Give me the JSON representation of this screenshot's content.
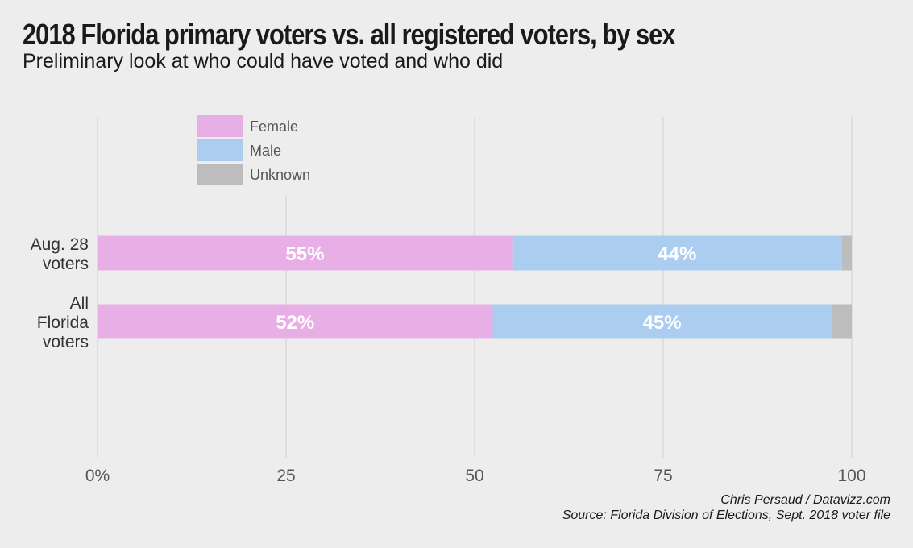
{
  "title": "2018 Florida primary voters vs. all registered voters, by sex",
  "subtitle": "Preliminary look at who could have voted and who did",
  "credits": {
    "author": "Chris Persaud / Datavizz.com",
    "source": "Source: Florida Division of Elections, Sept. 2018 voter file"
  },
  "chart_data": {
    "type": "bar",
    "orientation": "horizontal",
    "stacked": true,
    "categories": [
      [
        "Aug. 28",
        "voters"
      ],
      [
        "All",
        "Florida",
        "voters"
      ]
    ],
    "series": [
      {
        "name": "Female",
        "color": "#e8aee6",
        "values": [
          55,
          52.4
        ],
        "labels": [
          "55%",
          "52%"
        ]
      },
      {
        "name": "Male",
        "color": "#abcdf0",
        "values": [
          43.7,
          44.9
        ],
        "labels": [
          "44%",
          "45%"
        ]
      },
      {
        "name": "Unknown",
        "color": "#bdbdbd",
        "values": [
          1.3,
          2.7
        ],
        "labels": [
          "",
          ""
        ]
      }
    ],
    "xlim": [
      0,
      100
    ],
    "xticks": [
      0,
      25,
      50,
      75,
      100
    ],
    "xtick_labels": [
      "0%",
      "25",
      "50",
      "75",
      "100"
    ],
    "grid": true,
    "legend_position": "top-left"
  }
}
